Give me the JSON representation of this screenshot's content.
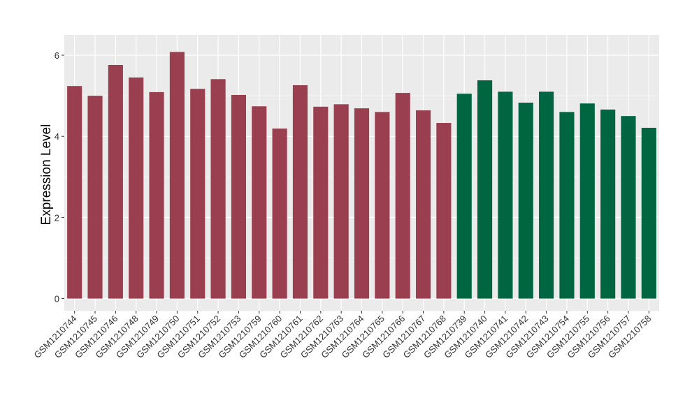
{
  "chart_data": {
    "type": "bar",
    "title": "",
    "xlabel": "",
    "ylabel": "Expression Level",
    "ylim": [
      -0.3,
      6.5
    ],
    "yticks": [
      0,
      2,
      4,
      6
    ],
    "ytick_labels": [
      "0",
      "2",
      "4",
      "6"
    ],
    "grid": true,
    "legend": "none",
    "categories": [
      "GSM1210744",
      "GSM1210745",
      "GSM1210746",
      "GSM1210748",
      "GSM1210749",
      "GSM1210750",
      "GSM1210751",
      "GSM1210752",
      "GSM1210753",
      "GSM1210759",
      "GSM1210760",
      "GSM1210761",
      "GSM1210762",
      "GSM1210763",
      "GSM1210764",
      "GSM1210765",
      "GSM1210766",
      "GSM1210767",
      "GSM1210768",
      "GSM1210739",
      "GSM1210740",
      "GSM1210741",
      "GSM1210742",
      "GSM1210743",
      "GSM1210754",
      "GSM1210755",
      "GSM1210756",
      "GSM1210757",
      "GSM1210758"
    ],
    "values": [
      5.24,
      5.0,
      5.76,
      5.45,
      5.09,
      6.08,
      5.17,
      5.41,
      5.02,
      4.74,
      4.19,
      5.26,
      4.73,
      4.79,
      4.69,
      4.6,
      5.07,
      4.64,
      4.33,
      5.05,
      5.38,
      5.1,
      4.83,
      5.1,
      4.6,
      4.81,
      4.66,
      4.5,
      4.21
    ],
    "groups": [
      0,
      0,
      0,
      0,
      0,
      0,
      0,
      0,
      0,
      0,
      0,
      0,
      0,
      0,
      0,
      0,
      0,
      0,
      0,
      1,
      1,
      1,
      1,
      1,
      1,
      1,
      1,
      1,
      1
    ],
    "group_colors": [
      "#993f4f",
      "#006641"
    ]
  }
}
